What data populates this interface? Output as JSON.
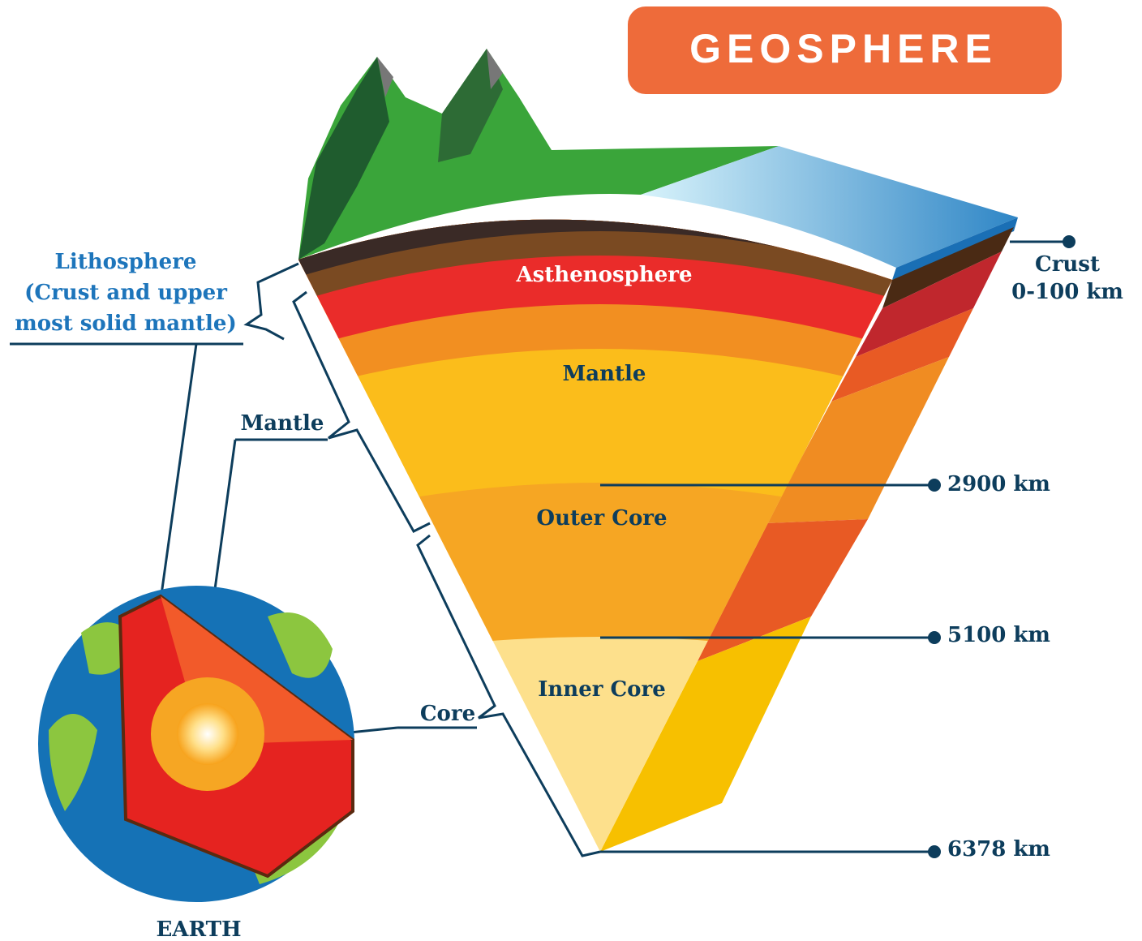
{
  "title": "GEOSPHERE",
  "layers": [
    "Asthenosphere",
    "Mantle",
    "Outer Core",
    "Inner Core"
  ],
  "crust": {
    "name": "Crust",
    "depth": "0-100 km"
  },
  "depths": [
    "2900 km",
    "5100 km",
    "6378 km"
  ],
  "brackets": {
    "lithosphere": [
      "Lithosphere",
      "(Crust and upper",
      "most solid mantle)"
    ],
    "mantle": "Mantle",
    "core": "Core"
  },
  "earth_label": "EARTH"
}
